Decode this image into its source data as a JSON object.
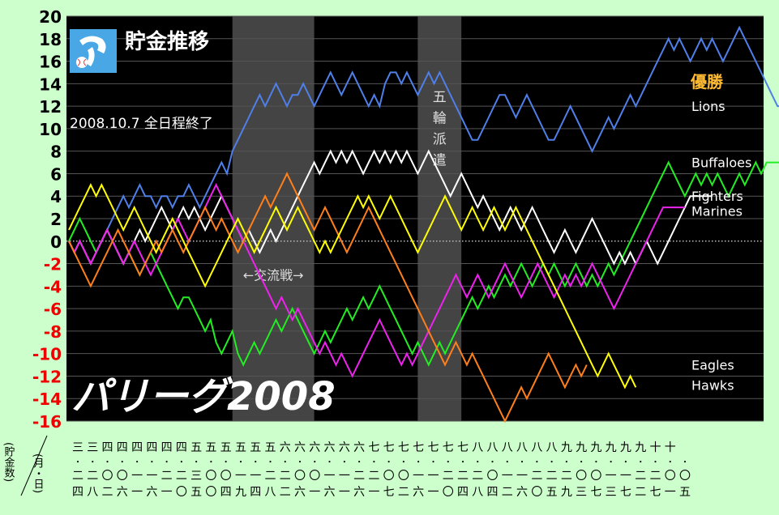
{
  "chart_data": {
    "type": "line",
    "title": "貯金推移",
    "subtitle": "2008.10.7 全日程終了",
    "big_title": "パリーグ2008",
    "ylabel": "(貯金数)",
    "xlabel": "(月・日)",
    "ylim": [
      -16,
      20
    ],
    "yticks": [
      20,
      18,
      16,
      14,
      12,
      10,
      8,
      6,
      4,
      2,
      0,
      -2,
      -4,
      -6,
      -8,
      -10,
      -12,
      -14,
      -16
    ],
    "grid": true,
    "champion_label": "優勝",
    "shaded_periods": [
      {
        "label": "←交流戦→",
        "from": 30,
        "to": 45
      },
      {
        "label": "五輪派遣",
        "from": 64,
        "to": 72
      }
    ],
    "date_labels": [
      {
        "month": "三",
        "d1": "二",
        "d2": "四"
      },
      {
        "month": "三",
        "d1": "二",
        "d2": "八"
      },
      {
        "month": "四",
        "d1": "〇",
        "d2": "二"
      },
      {
        "month": "四",
        "d1": "〇",
        "d2": "六"
      },
      {
        "month": "四",
        "d1": "一",
        "d2": "一"
      },
      {
        "month": "四",
        "d1": "一",
        "d2": "六"
      },
      {
        "month": "四",
        "d1": "二",
        "d2": "一"
      },
      {
        "month": "四",
        "d1": "二",
        "d2": "〇"
      },
      {
        "month": "五",
        "d1": "三",
        "d2": "五"
      },
      {
        "month": "五",
        "d1": "〇",
        "d2": "〇"
      },
      {
        "month": "五",
        "d1": "〇",
        "d2": "四"
      },
      {
        "month": "五",
        "d1": "一",
        "d2": "九"
      },
      {
        "month": "五",
        "d1": "一",
        "d2": "四"
      },
      {
        "month": "五",
        "d1": "二",
        "d2": "八"
      },
      {
        "month": "六",
        "d1": "二",
        "d2": "二"
      },
      {
        "month": "六",
        "d1": "〇",
        "d2": "六"
      },
      {
        "month": "六",
        "d1": "〇",
        "d2": "一"
      },
      {
        "month": "六",
        "d1": "一",
        "d2": "六"
      },
      {
        "month": "六",
        "d1": "一",
        "d2": "一"
      },
      {
        "month": "六",
        "d1": "二",
        "d2": "六"
      },
      {
        "month": "七",
        "d1": "二",
        "d2": "一"
      },
      {
        "month": "七",
        "d1": "〇",
        "d2": "七"
      },
      {
        "month": "七",
        "d1": "〇",
        "d2": "二"
      },
      {
        "month": "七",
        "d1": "一",
        "d2": "六"
      },
      {
        "month": "七",
        "d1": "一",
        "d2": "一"
      },
      {
        "month": "七",
        "d1": "二",
        "d2": "〇"
      },
      {
        "month": "七",
        "d1": "二",
        "d2": "四"
      },
      {
        "month": "八",
        "d1": "二",
        "d2": "八"
      },
      {
        "month": "八",
        "d1": "〇",
        "d2": "四"
      },
      {
        "month": "八",
        "d1": "一",
        "d2": "二"
      },
      {
        "month": "八",
        "d1": "一",
        "d2": "六"
      },
      {
        "month": "八",
        "d1": "二",
        "d2": "〇"
      },
      {
        "month": "八",
        "d1": "二",
        "d2": "五"
      },
      {
        "month": "九",
        "d1": "二",
        "d2": "九"
      },
      {
        "month": "九",
        "d1": "〇",
        "d2": "三"
      },
      {
        "month": "九",
        "d1": "〇",
        "d2": "七"
      },
      {
        "month": "九",
        "d1": "一",
        "d2": "三"
      },
      {
        "month": "九",
        "d1": "一",
        "d2": "七"
      },
      {
        "month": "九",
        "d1": "二",
        "d2": "二"
      },
      {
        "month": "十",
        "d1": "二",
        "d2": "七"
      },
      {
        "month": "十",
        "d1": "〇",
        "d2": "一"
      },
      {
        "month": "",
        "d1": "〇",
        "d2": "五"
      }
    ],
    "series": [
      {
        "name": "Lions",
        "color": "#4f7fe8",
        "values": [
          0,
          -1,
          0,
          -1,
          -2,
          -1,
          0,
          1,
          2,
          3,
          4,
          3,
          4,
          5,
          4,
          4,
          3,
          4,
          4,
          3,
          4,
          4,
          5,
          4,
          3,
          4,
          5,
          6,
          7,
          6,
          8,
          9,
          10,
          11,
          12,
          13,
          12,
          13,
          14,
          13,
          12,
          13,
          13,
          14,
          13,
          12,
          13,
          14,
          15,
          14,
          13,
          14,
          15,
          14,
          13,
          12,
          13,
          12,
          14,
          15,
          15,
          14,
          15,
          14,
          13,
          14,
          15,
          14,
          15,
          14,
          13,
          12,
          11,
          10,
          9,
          9,
          10,
          11,
          12,
          13,
          13,
          12,
          11,
          12,
          13,
          12,
          11,
          10,
          9,
          9,
          10,
          11,
          12,
          11,
          10,
          9,
          8,
          9,
          10,
          11,
          10,
          11,
          12,
          13,
          12,
          13,
          14,
          15,
          16,
          17,
          18,
          17,
          18,
          17,
          16,
          17,
          18,
          17,
          18,
          17,
          16,
          17,
          18,
          19,
          18,
          17,
          16,
          15,
          14,
          13,
          12,
          12,
          13,
          13,
          12,
          12,
          12
        ]
      },
      {
        "name": "Buffaloes",
        "color": "#22ee22",
        "values": [
          0,
          1,
          2,
          1,
          0,
          -1,
          0,
          1,
          0,
          -1,
          -2,
          -1,
          -2,
          -3,
          -2,
          -1,
          -2,
          -3,
          -4,
          -5,
          -6,
          -5,
          -5,
          -6,
          -7,
          -8,
          -7,
          -9,
          -10,
          -9,
          -8,
          -10,
          -11,
          -10,
          -9,
          -10,
          -9,
          -8,
          -7,
          -8,
          -7,
          -6,
          -7,
          -8,
          -9,
          -10,
          -9,
          -8,
          -9,
          -8,
          -7,
          -6,
          -7,
          -6,
          -5,
          -6,
          -5,
          -4,
          -5,
          -6,
          -7,
          -8,
          -9,
          -10,
          -9,
          -10,
          -11,
          -10,
          -9,
          -10,
          -9,
          -8,
          -7,
          -6,
          -5,
          -6,
          -5,
          -4,
          -5,
          -4,
          -3,
          -4,
          -3,
          -2,
          -3,
          -4,
          -3,
          -2,
          -3,
          -2,
          -3,
          -4,
          -3,
          -2,
          -3,
          -4,
          -3,
          -4,
          -3,
          -2,
          -3,
          -2,
          -1,
          0,
          1,
          2,
          3,
          4,
          5,
          6,
          7,
          6,
          5,
          4,
          5,
          6,
          5,
          6,
          5,
          6,
          5,
          4,
          5,
          6,
          5,
          6,
          7,
          6,
          7,
          7,
          7,
          7,
          7,
          7
        ]
      },
      {
        "name": "Fighters",
        "color": "#ffffff",
        "values": [
          0,
          -1,
          0,
          -1,
          -2,
          -1,
          0,
          1,
          0,
          -1,
          -2,
          -1,
          0,
          1,
          0,
          1,
          2,
          3,
          2,
          1,
          2,
          3,
          2,
          3,
          2,
          1,
          2,
          3,
          4,
          3,
          2,
          1,
          0,
          1,
          0,
          -1,
          0,
          1,
          0,
          1,
          2,
          3,
          4,
          5,
          6,
          7,
          6,
          7,
          8,
          7,
          8,
          7,
          8,
          7,
          6,
          7,
          8,
          7,
          8,
          7,
          8,
          7,
          8,
          7,
          6,
          7,
          8,
          7,
          6,
          5,
          4,
          5,
          6,
          5,
          4,
          3,
          4,
          3,
          2,
          1,
          2,
          3,
          2,
          1,
          2,
          3,
          2,
          1,
          0,
          -1,
          0,
          1,
          0,
          -1,
          0,
          1,
          2,
          1,
          0,
          -1,
          -2,
          -1,
          -2,
          -1,
          -2,
          -1,
          0,
          -1,
          -2,
          -1,
          0,
          1,
          2,
          3,
          4,
          4,
          4,
          4,
          4
        ]
      },
      {
        "name": "Marines",
        "color": "#ee22ee",
        "values": [
          0,
          -1,
          0,
          -1,
          -2,
          -1,
          0,
          1,
          0,
          -1,
          -2,
          -1,
          0,
          -1,
          -2,
          -3,
          -2,
          -1,
          0,
          1,
          2,
          1,
          0,
          1,
          2,
          3,
          4,
          5,
          4,
          3,
          2,
          1,
          0,
          -1,
          -2,
          -3,
          -4,
          -5,
          -6,
          -5,
          -6,
          -7,
          -6,
          -7,
          -8,
          -9,
          -10,
          -9,
          -10,
          -11,
          -10,
          -11,
          -12,
          -11,
          -10,
          -9,
          -8,
          -7,
          -8,
          -9,
          -10,
          -11,
          -10,
          -11,
          -10,
          -9,
          -8,
          -7,
          -6,
          -5,
          -4,
          -3,
          -4,
          -5,
          -4,
          -3,
          -4,
          -5,
          -4,
          -3,
          -2,
          -3,
          -4,
          -5,
          -4,
          -3,
          -2,
          -3,
          -4,
          -5,
          -4,
          -3,
          -4,
          -3,
          -4,
          -3,
          -2,
          -3,
          -4,
          -5,
          -6,
          -5,
          -4,
          -3,
          -2,
          -1,
          0,
          1,
          2,
          3,
          3,
          3,
          3,
          3
        ]
      },
      {
        "name": "Eagles",
        "color": "#ff7f1a",
        "values": [
          0,
          -1,
          -2,
          -3,
          -4,
          -3,
          -2,
          -1,
          0,
          1,
          0,
          -1,
          -2,
          -3,
          -2,
          -1,
          0,
          -1,
          0,
          1,
          0,
          -1,
          0,
          1,
          2,
          3,
          2,
          1,
          2,
          1,
          0,
          -1,
          0,
          1,
          2,
          3,
          4,
          3,
          4,
          5,
          6,
          5,
          4,
          3,
          2,
          1,
          2,
          3,
          2,
          1,
          0,
          -1,
          0,
          1,
          2,
          3,
          2,
          1,
          0,
          -1,
          -2,
          -3,
          -4,
          -5,
          -6,
          -7,
          -8,
          -9,
          -10,
          -11,
          -10,
          -9,
          -10,
          -11,
          -10,
          -11,
          -12,
          -13,
          -14,
          -15,
          -16,
          -15,
          -14,
          -13,
          -14,
          -13,
          -12,
          -11,
          -10,
          -11,
          -12,
          -13,
          -12,
          -11,
          -12,
          -11
        ]
      },
      {
        "name": "Hawks",
        "color": "#ffff00",
        "values": [
          1,
          2,
          3,
          4,
          5,
          4,
          5,
          4,
          3,
          2,
          1,
          2,
          3,
          2,
          1,
          0,
          -1,
          0,
          1,
          2,
          1,
          0,
          -1,
          -2,
          -3,
          -4,
          -3,
          -2,
          -1,
          0,
          1,
          2,
          1,
          0,
          -1,
          0,
          1,
          2,
          3,
          2,
          1,
          2,
          3,
          2,
          1,
          0,
          -1,
          0,
          -1,
          0,
          1,
          2,
          3,
          4,
          3,
          4,
          3,
          2,
          3,
          4,
          3,
          2,
          1,
          0,
          -1,
          0,
          1,
          2,
          3,
          4,
          3,
          2,
          1,
          2,
          3,
          2,
          1,
          2,
          3,
          2,
          1,
          2,
          3,
          2,
          1,
          0,
          -1,
          -2,
          -3,
          -4,
          -5,
          -6,
          -7,
          -8,
          -9,
          -10,
          -11,
          -12,
          -11,
          -10,
          -11,
          -12,
          -13,
          -12,
          -13
        ]
      }
    ]
  }
}
